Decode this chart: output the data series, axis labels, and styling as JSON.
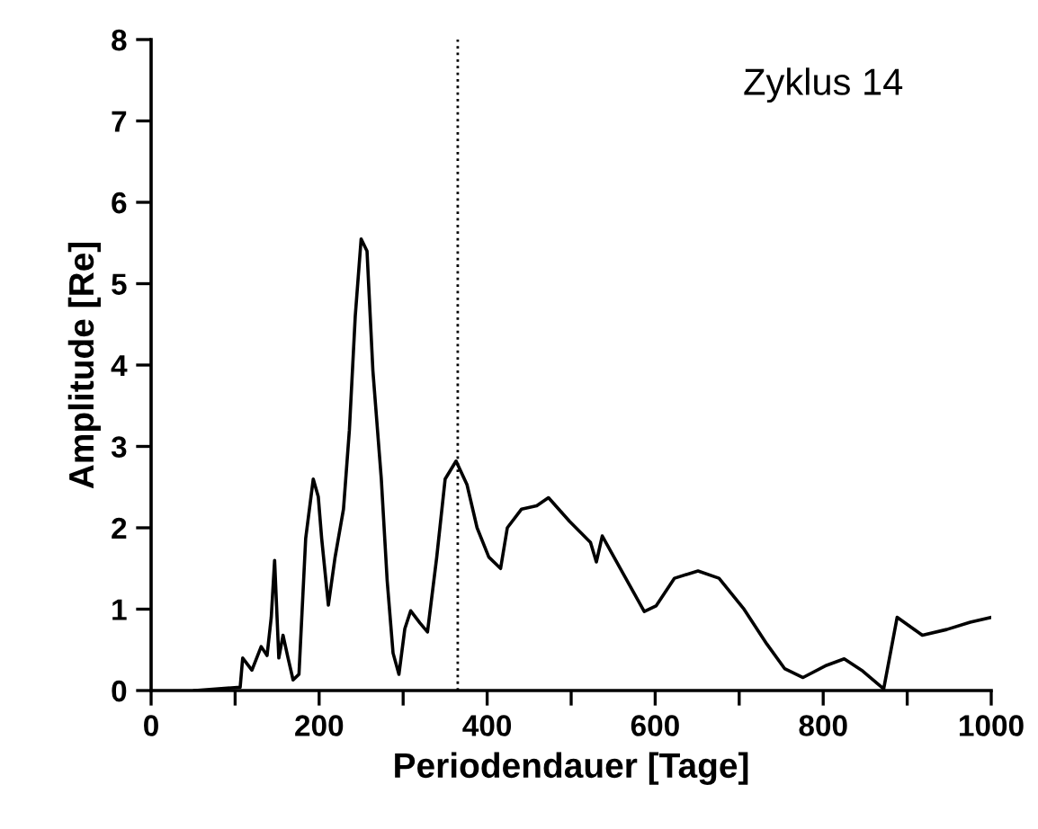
{
  "chart_data": {
    "type": "line",
    "xlabel": "Periodendauer [Tage]",
    "ylabel": "Amplitude [Re]",
    "annotations": [
      "Zyklus 14"
    ],
    "xlim": [
      0,
      1000
    ],
    "ylim": [
      0,
      8
    ],
    "xticks": [
      0,
      {
        "value": 100,
        "label": null
      },
      200,
      {
        "value": 300,
        "label": null
      },
      400,
      {
        "value": 500,
        "label": null
      },
      600,
      {
        "value": 700,
        "label": null
      },
      800,
      {
        "value": 900,
        "label": null
      },
      1000
    ],
    "yticks": [
      0,
      1,
      2,
      3,
      4,
      5,
      6,
      7,
      8
    ],
    "grid": false,
    "legend": false,
    "marker": "none",
    "line_style": "solid",
    "ref_lines": [
      {
        "axis": "x",
        "value": 365,
        "line_style": "dotted",
        "color": "#000000"
      }
    ],
    "series": [
      {
        "color": "#000000",
        "x": [
          52,
          106,
          109,
          120,
          131,
          138,
          143,
          147,
          152,
          157,
          163,
          169,
          176,
          184,
          193,
          199,
          203,
          211,
          219,
          229,
          236,
          243,
          250,
          257,
          264,
          274,
          281,
          288,
          295,
          302,
          309,
          320,
          329,
          340,
          350,
          363,
          376,
          388,
          402,
          416,
          424,
          441,
          459,
          473,
          498,
          523,
          530,
          537,
          559,
          587,
          601,
          623,
          651,
          676,
          705,
          733,
          754,
          776,
          804,
          825,
          847,
          872,
          888,
          918,
          947,
          975,
          1000
        ],
        "values": [
          0,
          0.04,
          0.4,
          0.25,
          0.54,
          0.43,
          0.9,
          1.6,
          0.4,
          0.68,
          0.4,
          0.13,
          0.2,
          1.87,
          2.6,
          2.38,
          1.87,
          1.05,
          1.64,
          2.23,
          3.2,
          4.6,
          5.55,
          5.4,
          3.93,
          2.6,
          1.35,
          0.46,
          0.2,
          0.76,
          0.98,
          0.83,
          0.72,
          1.64,
          2.6,
          2.82,
          2.53,
          2.0,
          1.64,
          1.5,
          2.0,
          2.23,
          2.27,
          2.37,
          2.08,
          1.82,
          1.58,
          1.9,
          1.49,
          0.97,
          1.04,
          1.38,
          1.47,
          1.38,
          1.01,
          0.57,
          0.27,
          0.16,
          0.31,
          0.39,
          0.24,
          0.02,
          0.9,
          0.68,
          0.75,
          0.84,
          0.9
        ]
      }
    ]
  }
}
